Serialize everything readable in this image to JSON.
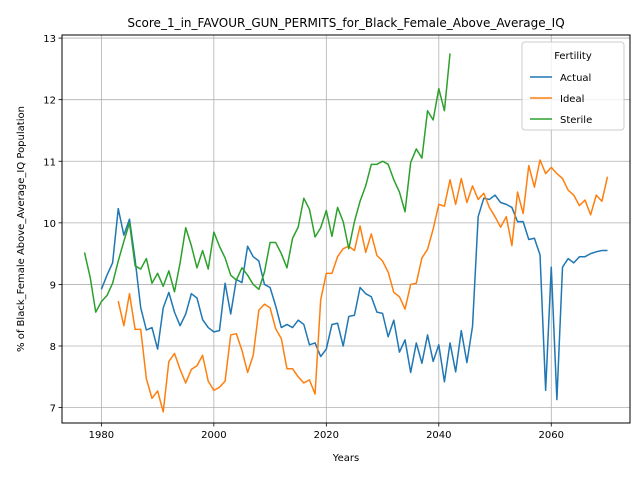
{
  "chart_data": {
    "type": "line",
    "title": "Score_1_in_FAVOUR_GUN_PERMITS_for_Black_Female_Above_Average_IQ",
    "xlabel": "Years",
    "ylabel": "% of Black_Female Above_Average_IQ Population",
    "xlim": [
      1973,
      2074
    ],
    "ylim": [
      6.75,
      13.05
    ],
    "xticks": [
      1980,
      2000,
      2020,
      2040,
      2060
    ],
    "yticks": [
      7,
      8,
      9,
      10,
      11,
      12,
      13
    ],
    "grid": true,
    "legend": {
      "title": "Fertility",
      "position": "top-right"
    },
    "series": [
      {
        "name": "Actual",
        "color": "#1f77b4",
        "x": [
          1980,
          1981,
          1982,
          1983,
          1984,
          1985,
          1986,
          1987,
          1988,
          1989,
          1990,
          1991,
          1992,
          1993,
          1994,
          1995,
          1996,
          1997,
          1998,
          1999,
          2000,
          2001,
          2002,
          2003,
          2004,
          2005,
          2006,
          2007,
          2008,
          2009,
          2010,
          2011,
          2012,
          2013,
          2014,
          2015,
          2016,
          2017,
          2018,
          2019,
          2020,
          2021,
          2022,
          2023,
          2024,
          2025,
          2026,
          2027,
          2028,
          2029,
          2030,
          2031,
          2032,
          2033,
          2034,
          2035,
          2036,
          2037,
          2038,
          2039,
          2040,
          2041,
          2042,
          2043,
          2044,
          2045,
          2046,
          2047,
          2048,
          2049,
          2050,
          2051,
          2052,
          2053,
          2054,
          2055,
          2056,
          2057,
          2058,
          2059,
          2060,
          2061,
          2062,
          2063,
          2064,
          2065,
          2066,
          2067,
          2068,
          2069,
          2070
        ],
        "y": [
          8.92,
          9.15,
          9.35,
          10.23,
          9.8,
          10.06,
          9.4,
          8.62,
          8.26,
          8.3,
          7.95,
          8.62,
          8.87,
          8.55,
          8.33,
          8.52,
          8.85,
          8.78,
          8.43,
          8.3,
          8.23,
          8.25,
          9.02,
          8.52,
          9.08,
          9.03,
          9.62,
          9.45,
          9.38,
          9.0,
          8.95,
          8.65,
          8.3,
          8.35,
          8.3,
          8.42,
          8.35,
          8.02,
          8.05,
          7.83,
          7.95,
          8.35,
          8.37,
          8.0,
          8.48,
          8.5,
          8.95,
          8.85,
          8.8,
          8.55,
          8.53,
          8.15,
          8.42,
          7.9,
          8.1,
          7.57,
          8.05,
          7.72,
          8.18,
          7.75,
          8.02,
          7.42,
          8.05,
          7.58,
          8.25,
          7.73,
          8.32,
          10.1,
          10.4,
          10.38,
          10.45,
          10.33,
          10.3,
          10.25,
          10.02,
          10.02,
          9.73,
          9.75,
          9.48,
          7.28,
          9.28,
          7.13,
          9.28,
          9.42,
          9.35,
          9.45,
          9.45,
          9.5,
          9.53,
          9.55,
          9.55
        ]
      },
      {
        "name": "Ideal",
        "color": "#ff7f0e",
        "x": [
          1983,
          1984,
          1985,
          1986,
          1987,
          1988,
          1989,
          1990,
          1991,
          1992,
          1993,
          1994,
          1995,
          1996,
          1997,
          1998,
          1999,
          2000,
          2001,
          2002,
          2003,
          2004,
          2005,
          2006,
          2007,
          2008,
          2009,
          2010,
          2011,
          2012,
          2013,
          2014,
          2015,
          2016,
          2017,
          2018,
          2019,
          2020,
          2021,
          2022,
          2023,
          2024,
          2025,
          2026,
          2027,
          2028,
          2029,
          2030,
          2031,
          2032,
          2033,
          2034,
          2035,
          2036,
          2037,
          2038,
          2039,
          2040,
          2041,
          2042,
          2043,
          2044,
          2045,
          2046,
          2047,
          2048,
          2049,
          2050,
          2051,
          2052,
          2053,
          2054,
          2055,
          2056,
          2057,
          2058,
          2059,
          2060,
          2061,
          2062,
          2063,
          2064,
          2065,
          2066,
          2067,
          2068,
          2069,
          2070
        ],
        "y": [
          8.73,
          8.33,
          8.85,
          8.27,
          8.27,
          7.47,
          7.15,
          7.27,
          6.93,
          7.75,
          7.88,
          7.62,
          7.4,
          7.62,
          7.68,
          7.85,
          7.43,
          7.28,
          7.33,
          7.43,
          8.18,
          8.2,
          7.93,
          7.57,
          7.85,
          8.58,
          8.68,
          8.62,
          8.28,
          8.12,
          7.63,
          7.63,
          7.5,
          7.4,
          7.45,
          7.22,
          8.75,
          9.18,
          9.18,
          9.45,
          9.58,
          9.62,
          9.55,
          9.95,
          9.52,
          9.82,
          9.47,
          9.38,
          9.2,
          8.87,
          8.8,
          8.6,
          9.0,
          9.02,
          9.43,
          9.57,
          9.9,
          10.3,
          10.27,
          10.7,
          10.3,
          10.72,
          10.33,
          10.6,
          10.38,
          10.48,
          10.25,
          10.1,
          9.93,
          10.1,
          9.63,
          10.5,
          10.15,
          10.93,
          10.58,
          11.02,
          10.8,
          10.9,
          10.8,
          10.72,
          10.53,
          10.45,
          10.28,
          10.37,
          10.13,
          10.45,
          10.35,
          10.75
        ]
      },
      {
        "name": "Sterile",
        "color": "#2ca02c",
        "x": [
          1977,
          1978,
          1979,
          1980,
          1981,
          1982,
          1983,
          1984,
          1985,
          1986,
          1987,
          1988,
          1989,
          1990,
          1991,
          1992,
          1993,
          1994,
          1995,
          1996,
          1997,
          1998,
          1999,
          2000,
          2001,
          2002,
          2003,
          2004,
          2005,
          2006,
          2007,
          2008,
          2009,
          2010,
          2011,
          2012,
          2013,
          2014,
          2015,
          2016,
          2017,
          2018,
          2019,
          2020,
          2021,
          2022,
          2023,
          2024,
          2025,
          2026,
          2027,
          2028,
          2029,
          2030,
          2031,
          2032,
          2033,
          2034,
          2035,
          2036,
          2037,
          2038,
          2039,
          2040,
          2041,
          2042
        ],
        "y": [
          9.52,
          9.12,
          8.55,
          8.72,
          8.82,
          9.02,
          9.38,
          9.7,
          10.0,
          9.3,
          9.25,
          9.42,
          9.02,
          9.18,
          8.97,
          9.22,
          8.88,
          9.35,
          9.92,
          9.63,
          9.27,
          9.55,
          9.25,
          9.85,
          9.62,
          9.43,
          9.15,
          9.07,
          9.27,
          9.15,
          9.0,
          8.92,
          9.2,
          9.68,
          9.68,
          9.5,
          9.27,
          9.75,
          9.93,
          10.4,
          10.22,
          9.77,
          9.92,
          10.2,
          9.78,
          10.25,
          10.02,
          9.58,
          10.02,
          10.35,
          10.6,
          10.95,
          10.95,
          11.0,
          10.95,
          10.7,
          10.5,
          10.18,
          10.98,
          11.2,
          11.05,
          11.82,
          11.67,
          12.18,
          11.82,
          12.75
        ]
      }
    ]
  }
}
